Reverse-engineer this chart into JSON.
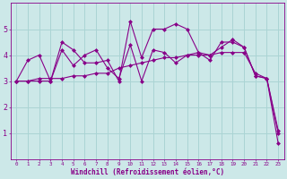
{
  "xlabel": "Windchill (Refroidissement éolien,°C)",
  "background_color": "#cce8e8",
  "grid_color": "#aad4d4",
  "line_color": "#880088",
  "x": [
    0,
    1,
    2,
    3,
    4,
    5,
    6,
    7,
    8,
    9,
    10,
    11,
    12,
    13,
    14,
    15,
    16,
    17,
    18,
    19,
    20,
    21,
    22,
    23
  ],
  "series1": [
    3.0,
    3.8,
    4.0,
    3.0,
    4.5,
    4.2,
    3.7,
    3.7,
    3.8,
    3.0,
    5.3,
    3.9,
    5.0,
    5.0,
    5.2,
    5.0,
    4.1,
    3.8,
    4.5,
    4.5,
    4.3,
    3.2,
    3.1,
    1.1
  ],
  "series2": [
    3.0,
    3.0,
    3.0,
    3.0,
    4.2,
    3.6,
    4.0,
    4.2,
    3.5,
    3.1,
    4.4,
    3.0,
    4.2,
    4.1,
    3.7,
    4.0,
    4.1,
    4.0,
    4.3,
    4.6,
    4.3,
    3.2,
    3.1,
    1.0
  ],
  "series3": [
    3.0,
    3.0,
    3.1,
    3.1,
    3.1,
    3.2,
    3.2,
    3.3,
    3.3,
    3.5,
    3.6,
    3.7,
    3.8,
    3.9,
    3.9,
    4.0,
    4.0,
    4.0,
    4.1,
    4.1,
    4.1,
    3.3,
    3.1,
    0.6
  ],
  "ylim": [
    0,
    6
  ],
  "yticks": [
    1,
    2,
    3,
    4,
    5
  ],
  "xticks": [
    0,
    1,
    2,
    3,
    4,
    5,
    6,
    7,
    8,
    9,
    10,
    11,
    12,
    13,
    14,
    15,
    16,
    17,
    18,
    19,
    20,
    21,
    22,
    23
  ]
}
